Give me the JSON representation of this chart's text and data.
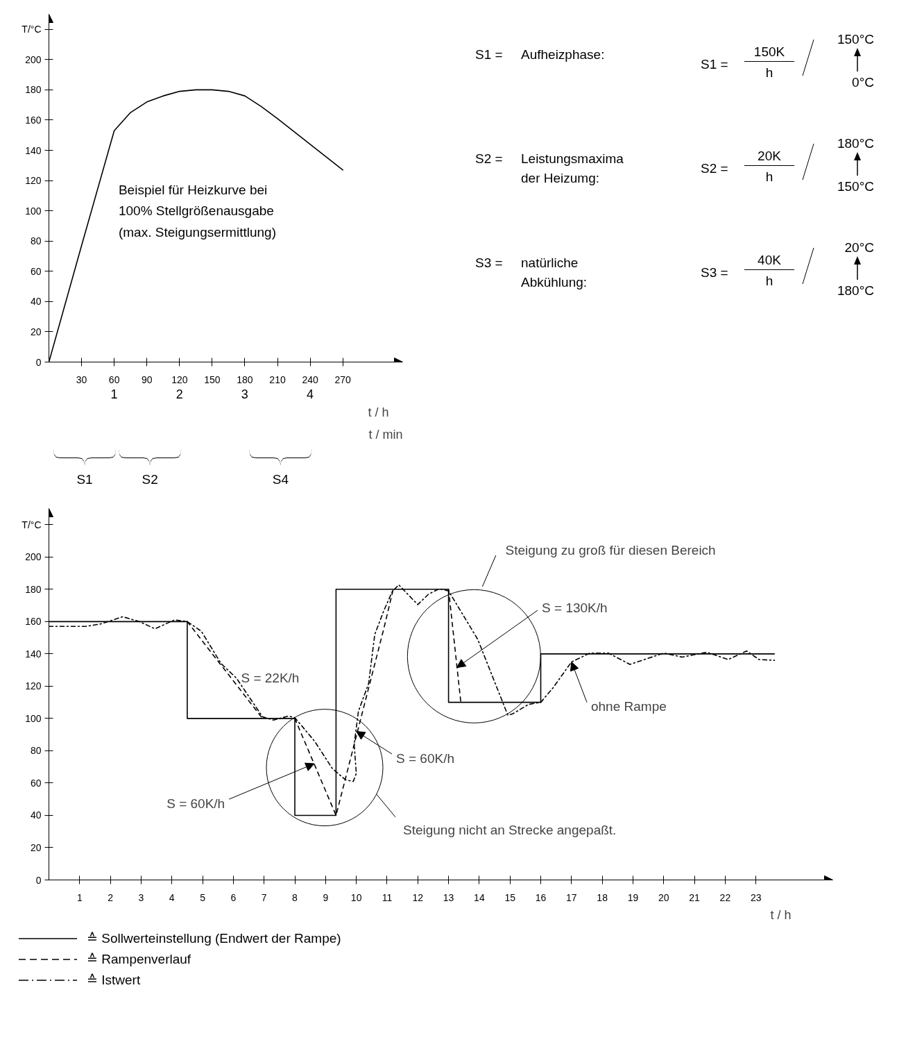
{
  "chart_data": [
    {
      "type": "line",
      "xlabel": "t / min",
      "x2label": "t / h",
      "x": [
        0,
        30,
        60,
        75,
        90,
        105,
        120,
        135,
        150,
        165,
        180,
        195,
        210,
        240,
        270
      ],
      "values": [
        0,
        77,
        153,
        165,
        172,
        176,
        179,
        180,
        180,
        179,
        176,
        169,
        161,
        144,
        127
      ],
      "color": "#000000",
      "line_style": "solid",
      "grid": false,
      "xlim": [
        0,
        325
      ],
      "ylim": [
        0,
        230
      ],
      "xticks": [
        30,
        60,
        90,
        120,
        150,
        180,
        210,
        240,
        270
      ],
      "yticks": [
        0,
        20,
        40,
        60,
        80,
        100,
        120,
        140,
        160,
        180,
        200,
        {
          "value": 220,
          "label": "T/°C"
        }
      ],
      "x2lim": [
        0,
        5.42
      ],
      "x2ticks": [
        1,
        2,
        3,
        4
      ],
      "annotations": [
        "Beispiel für Heizkurve bei\n100% Stellgrößenausgabe\n(max. Steigungsermittlung)",
        "S1 =",
        "Aufheizphase:",
        "S1 =",
        "150K",
        "h",
        "150°C",
        "0°C",
        "S2 =",
        "Leistungsmaxima\nder Heizumg:",
        "S2 =",
        "20K",
        "h",
        "180°C",
        "150°C",
        "S3 =",
        "natürliche\nAbkühlung:",
        "S3 =",
        "40K",
        "h",
        "20°C",
        "180°C",
        "S1",
        "S2",
        "S4"
      ]
    },
    {
      "type": "line",
      "xlabel": "t / h",
      "grid": false,
      "legend": "bottom",
      "xlim": [
        0,
        25.5
      ],
      "ylim": [
        0,
        230
      ],
      "xticks": [
        1,
        2,
        3,
        4,
        5,
        6,
        7,
        8,
        9,
        10,
        11,
        12,
        13,
        14,
        15,
        16,
        17,
        18,
        19,
        20,
        21,
        22,
        23
      ],
      "yticks": [
        0,
        20,
        40,
        60,
        80,
        100,
        120,
        140,
        160,
        180,
        200,
        {
          "value": 220,
          "label": "T/°C"
        }
      ],
      "series": [
        {
          "name": "≙ Sollwerteinstellung (Endwert der Rampe)",
          "color": "#000000",
          "line_style": "solid",
          "x": [
            0,
            4.5,
            4.5,
            8,
            8,
            9.34,
            9.34,
            13,
            13,
            16,
            16,
            23.6
          ],
          "values": [
            160,
            160,
            100,
            100,
            40,
            40,
            180,
            180,
            110,
            110,
            140,
            140
          ]
        },
        {
          "name": "≙ Rampenverlauf",
          "color": "#000000",
          "line_style": "dashed",
          "x": [
            4.5,
            6.95,
            7.5,
            8,
            9.34,
            10.9,
            11.2,
            12,
            13,
            13.4
          ],
          "values": [
            160,
            100,
            null,
            100,
            40,
            156,
            180,
            null,
            180,
            110
          ]
        },
        {
          "name": "≙ Istwert",
          "color": "#000000",
          "line_style": "dashdot",
          "x": [
            0,
            1.0,
            1.2,
            1.7,
            2.4,
            2.94,
            3.45,
            4.08,
            4.5,
            4.96,
            5.6,
            6.1,
            6.95,
            7.3,
            7.8,
            8.0,
            8.64,
            9.22,
            9.65,
            9.9,
            10.0,
            9.93,
            10.07,
            10.4,
            10.6,
            10.9,
            11.17,
            11.38,
            11.67,
            12.0,
            12.35,
            12.7,
            13.0,
            13.95,
            14.93,
            15.1,
            15.6,
            16.0,
            16.4,
            17.0,
            17.6,
            18.2,
            18.9,
            19.3,
            20.0,
            20.6,
            21.4,
            22.1,
            22.7,
            23.1,
            23.6
          ],
          "values": [
            157,
            157,
            157,
            158.6,
            163,
            160,
            155.5,
            161,
            160,
            154,
            134,
            125,
            101,
            99,
            101.5,
            100.5,
            86,
            69,
            62,
            61,
            66,
            84,
            104.6,
            121.6,
            152,
            167,
            178.6,
            182.8,
            177,
            170.5,
            177,
            180.3,
            179,
            149,
            102,
            103,
            108.7,
            110,
            119,
            135,
            140.5,
            140.5,
            133.5,
            136,
            140.5,
            138,
            141,
            136.5,
            141.8,
            136.5,
            136
          ]
        }
      ],
      "annotations": [
        {
          "text": "S = 22K/h",
          "x": 5.9,
          "y": 124
        },
        {
          "text": "S = 60K/h",
          "x": 8.63,
          "y": 72
        },
        {
          "text": "S = 60K/h",
          "x": 10.0,
          "y": 92
        },
        {
          "text": "S = 130K/h",
          "x": 13.27,
          "y": 131.5
        },
        {
          "text": "ohne Rampe",
          "x": 17.0,
          "y": 135
        },
        "Steigung nicht an Strecke angepaßt.",
        "Steigung zu groß für diesen Bereich"
      ]
    }
  ]
}
